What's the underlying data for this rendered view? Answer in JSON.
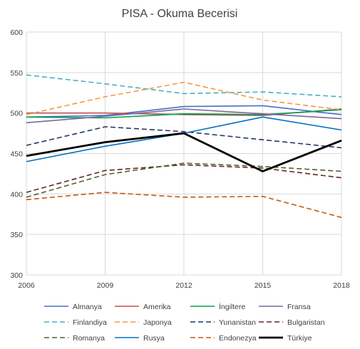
{
  "chart_data": {
    "type": "line",
    "title": "PISA - Okuma Becerisi",
    "x": [
      "2006",
      "2009",
      "2012",
      "2015",
      "2018"
    ],
    "ylim": [
      300,
      600
    ],
    "yticks": [
      "300",
      "350",
      "400",
      "450",
      "500",
      "550",
      "600"
    ],
    "grid": "on",
    "legend": "bottom",
    "series": [
      {
        "name": "Almanya",
        "values": [
          495,
          497,
          508,
          509,
          498
        ],
        "color": "#4472c4",
        "dash": "solid",
        "width": 1.6
      },
      {
        "name": "Amerika",
        "values": [
          500,
          500,
          498,
          497,
          505
        ],
        "color": "#c0504d",
        "dash": "solid",
        "width": 1.6
      },
      {
        "name": "İngiltere",
        "values": [
          495,
          494,
          499,
          498,
          504
        ],
        "color": "#00a050",
        "dash": "solid",
        "width": 1.6
      },
      {
        "name": "Fransa",
        "values": [
          488,
          496,
          505,
          499,
          493
        ],
        "color": "#8064a2",
        "dash": "solid",
        "width": 1.6
      },
      {
        "name": "Finlandiya",
        "values": [
          547,
          536,
          524,
          526,
          520
        ],
        "color": "#4bacc6",
        "dash": "dashed",
        "width": 1.6
      },
      {
        "name": "Japonya",
        "values": [
          498,
          520,
          538,
          516,
          504
        ],
        "color": "#f79646",
        "dash": "dashed",
        "width": 1.6
      },
      {
        "name": "Yunanistan",
        "values": [
          460,
          483,
          477,
          467,
          457
        ],
        "color": "#1f3864",
        "dash": "dashed",
        "width": 1.6
      },
      {
        "name": "Bulgaristan",
        "values": [
          402,
          429,
          436,
          432,
          420
        ],
        "color": "#632523",
        "dash": "dashed",
        "width": 1.6
      },
      {
        "name": "Romanya",
        "values": [
          396,
          424,
          438,
          434,
          428
        ],
        "color": "#4f6228",
        "dash": "dashed",
        "width": 1.6
      },
      {
        "name": "Rusya",
        "values": [
          440,
          459,
          475,
          495,
          479
        ],
        "color": "#0070c0",
        "dash": "solid",
        "width": 1.6
      },
      {
        "name": "Endonezya",
        "values": [
          393,
          402,
          396,
          397,
          371
        ],
        "color": "#c55a11",
        "dash": "dashed",
        "width": 1.6
      },
      {
        "name": "Türkiye",
        "values": [
          447,
          464,
          475,
          428,
          466
        ],
        "color": "#000000",
        "dash": "solid",
        "width": 2.8
      }
    ]
  }
}
